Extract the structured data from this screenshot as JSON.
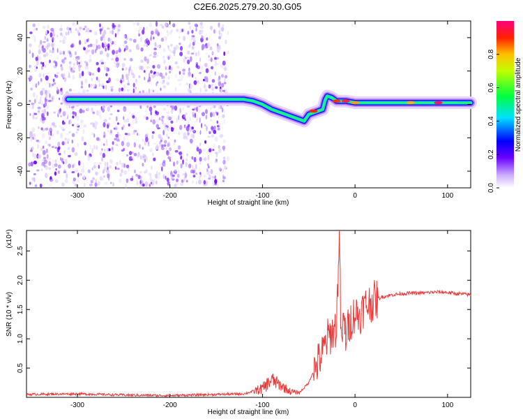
{
  "title": "C2E6.2025.279.20.30.G05",
  "colors": {
    "axis": "#000000",
    "line": "#e83a3a",
    "background": "#ffffff"
  },
  "chart_data": [
    {
      "type": "heatmap",
      "title": "C2E6.2025.279.20.30.G05",
      "xlabel": "Height of straight line (km)",
      "ylabel": "Frequency (Hz)",
      "xlim": [
        -355,
        125
      ],
      "ylim": [
        -50,
        50
      ],
      "xticks": [
        -300,
        -200,
        -100,
        0,
        100
      ],
      "yticks": [
        -40,
        -20,
        0,
        20,
        40
      ],
      "colorbar": {
        "label": "Normalized spectral amplitude",
        "range": [
          0,
          1
        ],
        "ticks": [
          "0.0",
          "0.2",
          "0.4",
          "0.6",
          "0.8"
        ],
        "tick_values": [
          0.0,
          0.2,
          0.4,
          0.6,
          0.8
        ]
      },
      "ridge": {
        "x": [
          -310,
          -250,
          -200,
          -150,
          -130,
          -120,
          -110,
          -100,
          -90,
          -80,
          -70,
          -60,
          -55,
          -50,
          -40,
          -35,
          -32,
          -30,
          -25,
          -20,
          -10,
          0,
          10,
          30,
          60,
          90,
          110,
          125
        ],
        "freq": [
          3,
          3,
          3,
          3,
          3,
          3,
          2,
          0,
          -3,
          -5,
          -7,
          -9,
          -10,
          -6,
          -4,
          -3,
          3,
          5,
          4,
          2,
          2,
          1,
          1,
          1,
          1,
          1,
          1,
          1
        ]
      }
    },
    {
      "type": "line",
      "xlabel": "Height of straight line (km)",
      "ylabel": "SNR (10 * v/v)",
      "yscale_label": "(x10⁴)",
      "xlim": [
        -355,
        125
      ],
      "ylim": [
        0,
        2.85
      ],
      "xticks": [
        -300,
        -200,
        -100,
        0,
        100
      ],
      "yticks": [
        0.5,
        1.0,
        1.5,
        2.0,
        2.5
      ],
      "series": [
        {
          "name": "SNR",
          "color": "#e83a3a",
          "x": [
            -355,
            -300,
            -250,
            -200,
            -150,
            -120,
            -100,
            -90,
            -80,
            -70,
            -60,
            -50,
            -45,
            -40,
            -35,
            -30,
            -25,
            -20,
            -17,
            -15,
            -12,
            -10,
            -5,
            0,
            5,
            10,
            20,
            30,
            40,
            50,
            60,
            70,
            80,
            90,
            100,
            110,
            120,
            125
          ],
          "values": [
            0.05,
            0.06,
            0.04,
            0.03,
            0.05,
            0.06,
            0.15,
            0.3,
            0.2,
            0.1,
            0.08,
            0.25,
            0.45,
            0.6,
            0.75,
            1.0,
            1.1,
            1.2,
            2.85,
            0.9,
            1.3,
            1.05,
            1.3,
            1.45,
            1.4,
            1.55,
            1.65,
            1.72,
            1.75,
            1.77,
            1.78,
            1.78,
            1.79,
            1.8,
            1.79,
            1.77,
            1.76,
            1.75
          ]
        }
      ]
    }
  ]
}
